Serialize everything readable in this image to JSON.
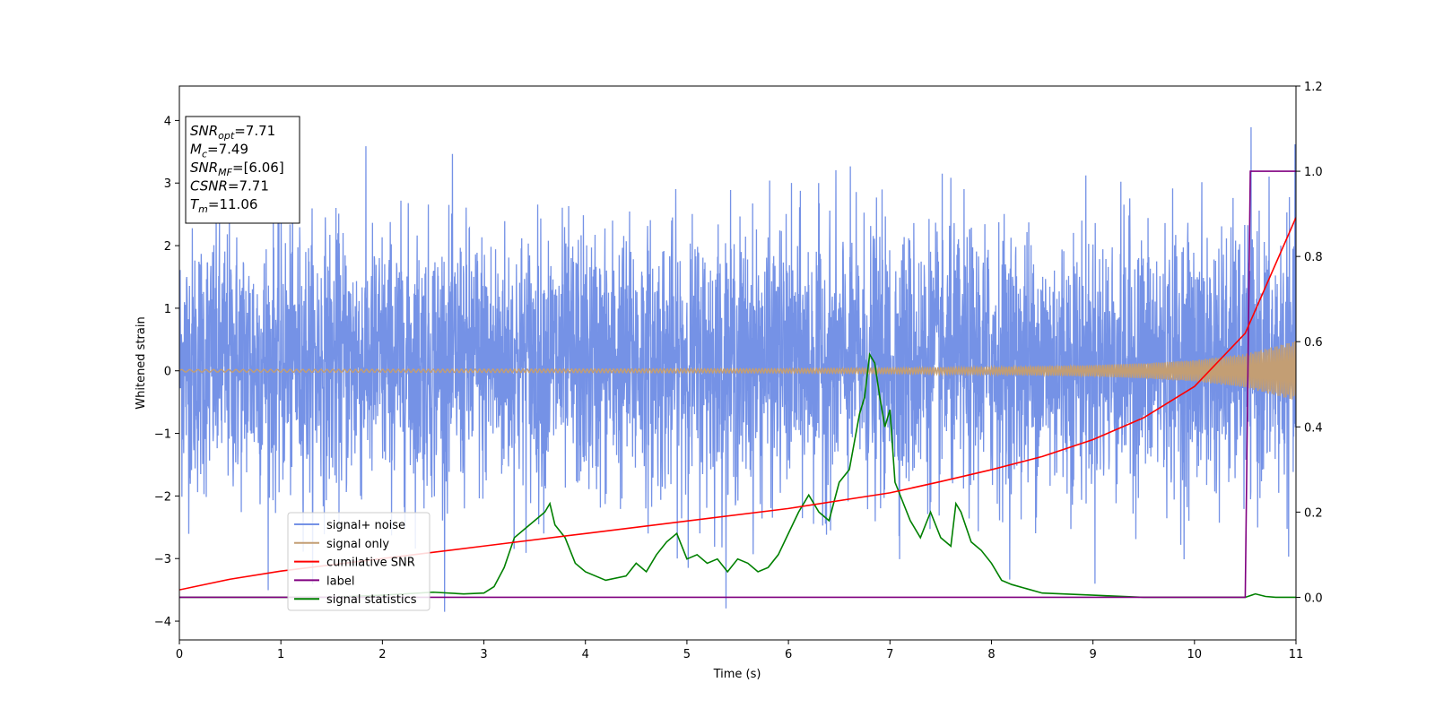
{
  "chart_data": {
    "type": "line",
    "xlabel": "Time (s)",
    "ylabel": "Whitened strain",
    "xlim": [
      0,
      11
    ],
    "ylim_left": [
      -4.3,
      4.55
    ],
    "ylim_right": [
      -0.1,
      1.2
    ],
    "x_ticks": [
      0,
      1,
      2,
      3,
      4,
      5,
      6,
      7,
      8,
      9,
      10,
      11
    ],
    "y_ticks_left": [
      -4,
      -3,
      -2,
      -1,
      0,
      1,
      2,
      3,
      4
    ],
    "y_ticks_right": [
      0.0,
      0.2,
      0.4,
      0.6,
      0.8,
      1.0,
      1.2
    ],
    "y_tick_labels_left": [
      "−4",
      "−3",
      "−2",
      "−1",
      "0",
      "1",
      "2",
      "3",
      "4"
    ],
    "y_tick_labels_right": [
      "0.0",
      "0.2",
      "0.4",
      "0.6",
      "0.8",
      "1.0",
      "1.2"
    ],
    "legend_position": "lower-left",
    "annotation": [
      {
        "base": "SNR",
        "sub": "opt",
        "value": "=7.71"
      },
      {
        "base": "M",
        "sub": "c",
        "value": "=7.49"
      },
      {
        "base": "SNR",
        "sub": "MF",
        "value": "=[6.06]"
      },
      {
        "base": "CSNR",
        "sub": "",
        "value": "=7.71"
      },
      {
        "base": "T",
        "sub": "m",
        "value": "=11.06"
      }
    ],
    "series": [
      {
        "name": "signal+ noise",
        "color": "#7592e6",
        "axis": "left",
        "description_envelope": {
          "x": [
            0,
            11
          ],
          "typical_range": [
            -2.0,
            2.4
          ],
          "extremes": [
            -3.85,
            4.15
          ]
        }
      },
      {
        "name": "signal only",
        "color": "#c39e74",
        "axis": "left",
        "envelope": {
          "x": [
            0,
            2,
            4,
            6,
            7,
            8,
            9,
            9.5,
            10,
            10.5,
            11
          ],
          "amplitude": [
            0.02,
            0.025,
            0.03,
            0.035,
            0.045,
            0.06,
            0.09,
            0.12,
            0.17,
            0.27,
            0.48
          ]
        }
      },
      {
        "name": "cumilative SNR",
        "color": "#ff0000",
        "axis": "left",
        "x": [
          0,
          0.5,
          1,
          2,
          3,
          4,
          5,
          6,
          7,
          7.5,
          8,
          8.5,
          9,
          9.5,
          10,
          10.5,
          11
        ],
        "y": [
          -3.5,
          -3.33,
          -3.2,
          -3.0,
          -2.8,
          -2.6,
          -2.4,
          -2.2,
          -1.95,
          -1.77,
          -1.58,
          -1.37,
          -1.1,
          -0.75,
          -0.25,
          0.6,
          2.45
        ]
      },
      {
        "name": "label",
        "color": "#800080",
        "axis": "right",
        "x": [
          0,
          10.5,
          10.55,
          11
        ],
        "y": [
          0.0,
          0.0,
          1.0,
          1.0
        ]
      },
      {
        "name": "signal statistics",
        "color": "#008000",
        "axis": "right",
        "x": [
          0,
          0.5,
          1,
          1.5,
          2,
          2.5,
          2.8,
          3.0,
          3.1,
          3.2,
          3.3,
          3.4,
          3.5,
          3.6,
          3.65,
          3.7,
          3.8,
          3.9,
          4.0,
          4.2,
          4.4,
          4.5,
          4.6,
          4.7,
          4.8,
          4.9,
          5.0,
          5.1,
          5.2,
          5.3,
          5.4,
          5.5,
          5.6,
          5.7,
          5.8,
          5.9,
          6.0,
          6.1,
          6.2,
          6.3,
          6.4,
          6.5,
          6.6,
          6.7,
          6.75,
          6.8,
          6.85,
          6.9,
          6.95,
          7.0,
          7.05,
          7.1,
          7.2,
          7.3,
          7.4,
          7.5,
          7.6,
          7.65,
          7.7,
          7.8,
          7.9,
          8.0,
          8.1,
          8.2,
          8.5,
          9.0,
          9.5,
          10.0,
          10.5,
          10.6,
          10.7,
          10.8,
          11.0
        ],
        "y": [
          0.0,
          0.0,
          0.0,
          0.0,
          0.005,
          0.012,
          0.008,
          0.01,
          0.025,
          0.07,
          0.14,
          0.16,
          0.18,
          0.2,
          0.22,
          0.17,
          0.14,
          0.08,
          0.06,
          0.04,
          0.05,
          0.08,
          0.06,
          0.1,
          0.13,
          0.15,
          0.09,
          0.1,
          0.08,
          0.09,
          0.06,
          0.09,
          0.08,
          0.06,
          0.07,
          0.1,
          0.15,
          0.2,
          0.24,
          0.2,
          0.18,
          0.27,
          0.3,
          0.43,
          0.47,
          0.57,
          0.55,
          0.47,
          0.4,
          0.44,
          0.27,
          0.24,
          0.18,
          0.14,
          0.2,
          0.14,
          0.12,
          0.22,
          0.2,
          0.13,
          0.11,
          0.08,
          0.04,
          0.03,
          0.01,
          0.005,
          0.0,
          0.0,
          0.0,
          0.008,
          0.002,
          0.0,
          0.0
        ]
      }
    ]
  }
}
